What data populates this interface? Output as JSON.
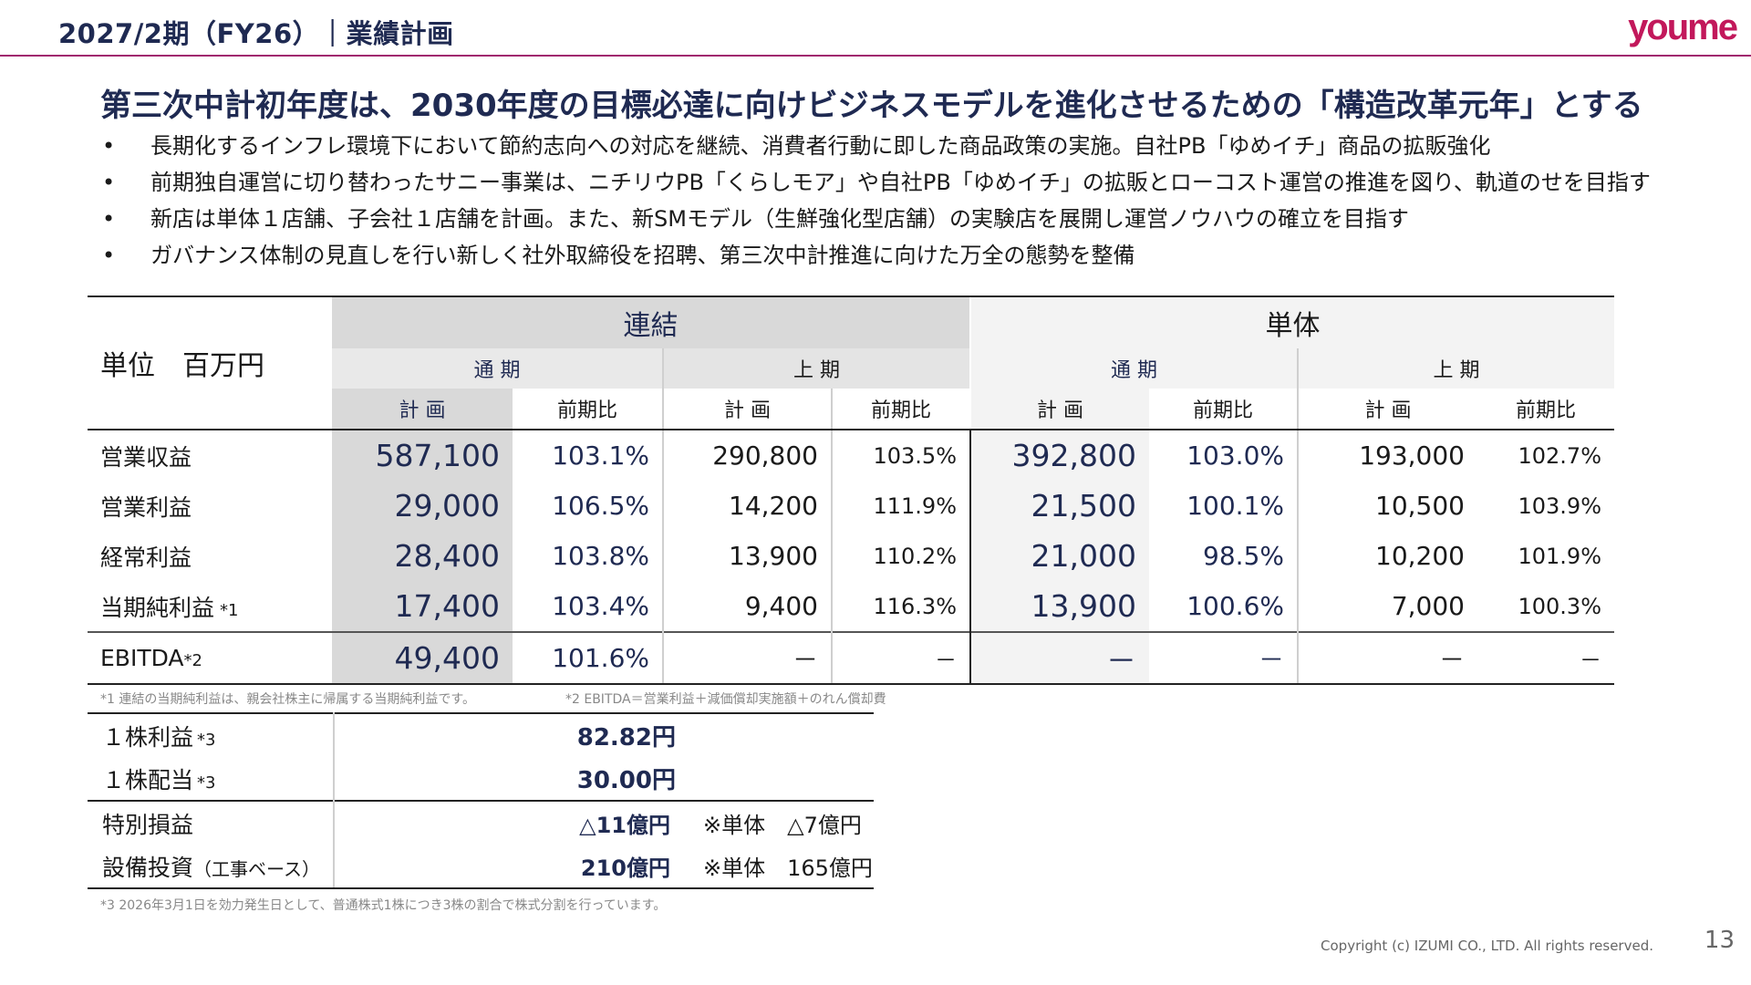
{
  "header": {
    "title": "2027/2期（FY26）｜業績計画",
    "logo": "youme"
  },
  "headline": "第三次中計初年度は、2030年度の目標必達に向けビジネスモデルを進化させるための「構造改革元年」とする",
  "bullets": [
    "長期化するインフレ環境下において節約志向への対応を継続、消費者行動に即した商品政策の実施。自社PB「ゆめイチ」商品の拡販強化",
    "前期独自運営に切り替わったサニー事業は、ニチリウPB「くらしモア」や自社PB「ゆめイチ」の拡販とローコスト運営の推進を図り、軌道のせを目指す",
    "新店は単体１店舗、子会社１店舗を計画。また、新SMモデル（生鮮強化型店舗）の実験店を展開し運営ノウハウの確立を目指す",
    "ガバナンス体制の見直しを行い新しく社外取締役を招聘、第三次中計推進に向けた万全の態勢を整備"
  ],
  "bullet_marker": "•",
  "table": {
    "unit": "単位　百万円",
    "group_consolidated": "連結",
    "group_standalone": "単体",
    "full_year": "通 期",
    "half_year": "上 期",
    "plan": "計 画",
    "yoy": "前期比",
    "rows": [
      {
        "label": "営業収益",
        "sup": "",
        "c_fy": "587,100",
        "c_fy_yoy": "103.1%",
        "c_h1": "290,800",
        "c_h1_yoy": "103.5%",
        "s_fy": "392,800",
        "s_fy_yoy": "103.0%",
        "s_h1": "193,000",
        "s_h1_yoy": "102.7%"
      },
      {
        "label": "営業利益",
        "sup": "",
        "c_fy": "29,000",
        "c_fy_yoy": "106.5%",
        "c_h1": "14,200",
        "c_h1_yoy": "111.9%",
        "s_fy": "21,500",
        "s_fy_yoy": "100.1%",
        "s_h1": "10,500",
        "s_h1_yoy": "103.9%"
      },
      {
        "label": "経常利益",
        "sup": "",
        "c_fy": "28,400",
        "c_fy_yoy": "103.8%",
        "c_h1": "13,900",
        "c_h1_yoy": "110.2%",
        "s_fy": "21,000",
        "s_fy_yoy": "98.5%",
        "s_h1": "10,200",
        "s_h1_yoy": "101.9%"
      },
      {
        "label": "当期純利益",
        "sup": "*1",
        "c_fy": "17,400",
        "c_fy_yoy": "103.4%",
        "c_h1": "9,400",
        "c_h1_yoy": "116.3%",
        "s_fy": "13,900",
        "s_fy_yoy": "100.6%",
        "s_h1": "7,000",
        "s_h1_yoy": "100.3%"
      }
    ],
    "ebitda": {
      "label": "EBITDA",
      "sup": "*2",
      "c_fy": "49,400",
      "c_fy_yoy": "101.6%",
      "c_h1": "－",
      "c_h1_yoy": "－",
      "s_fy": "－",
      "s_fy_yoy": "－",
      "s_h1": "－",
      "s_h1_yoy": "－"
    }
  },
  "notes": {
    "note1": "*1 連結の当期純利益は、親会社株主に帰属する当期純利益です。",
    "note2": "*2 EBITDA＝営業利益＋減価償却実施額＋のれん償却費",
    "note3": "*3 2026年3月1日を効力発生日として、普通株式1株につき3株の割合で株式分割を行っています。"
  },
  "small": {
    "eps_label": "１株利益",
    "eps_sup": "*3",
    "eps": "82.82円",
    "dps_label": "１株配当",
    "dps_sup": "*3",
    "dps": "30.00円",
    "special_label": "特別損益",
    "special": "△11億円",
    "special_extra": "※単体　△7億円",
    "capex_label": "設備投資",
    "capex_sub": "（工事ベース）",
    "capex": "210億円",
    "capex_extra": "※単体　165億円"
  },
  "footer": {
    "copyright": "Copyright (c) IZUMI CO., LTD. All rights reserved.",
    "page": "13"
  }
}
